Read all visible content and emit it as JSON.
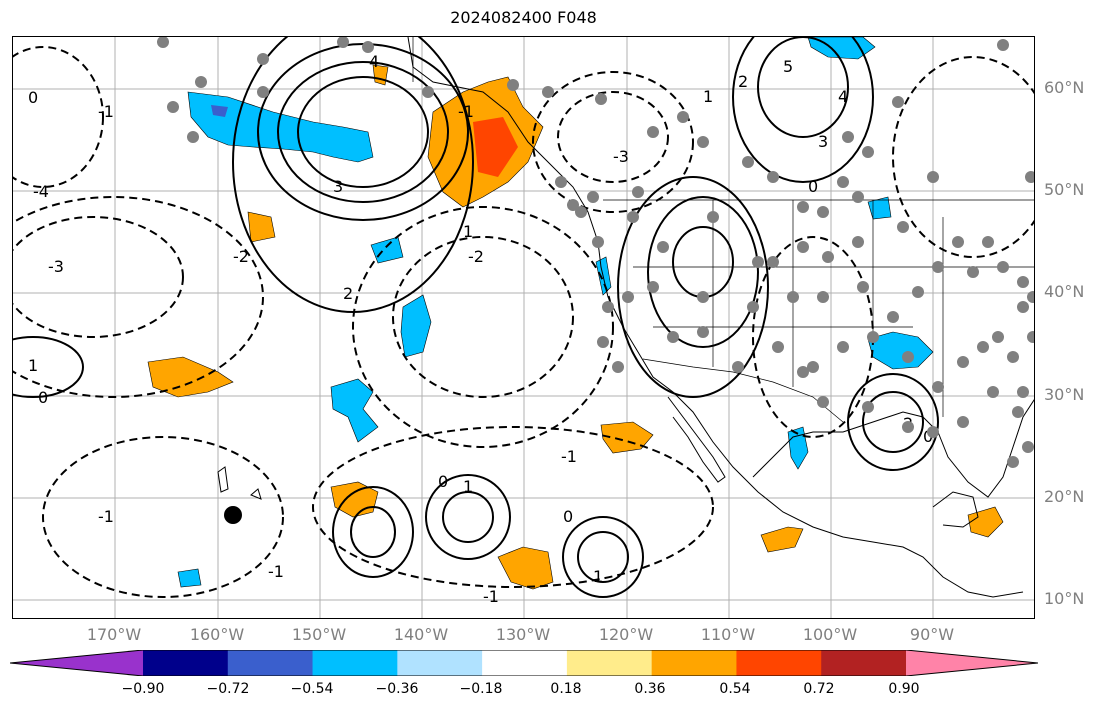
{
  "title": "2024082400 F048",
  "lon_labels": [
    "170°W",
    "160°W",
    "150°W",
    "140°W",
    "130°W",
    "120°W",
    "110°W",
    "100°W",
    "90°W"
  ],
  "lat_labels": [
    "60°N",
    "50°N",
    "40°N",
    "30°N",
    "20°N",
    "10°N"
  ],
  "colorbar": {
    "ticks": [
      "−0.90",
      "−0.72",
      "−0.54",
      "−0.36",
      "−0.18",
      "0.18",
      "0.36",
      "0.54",
      "0.72",
      "0.90"
    ],
    "colors": [
      "#9932cc",
      "#00008b",
      "#3a5fcd",
      "#00bfff",
      "#b0e2ff",
      "#ffffff",
      "#ffec8b",
      "#ffa500",
      "#ff4500",
      "#b22222",
      "#ff83a8"
    ]
  },
  "contour_labels": [
    "4",
    "3",
    "2",
    "1",
    "0",
    "-1",
    "-2",
    "-3",
    "-4",
    "5",
    "4",
    "3",
    "2",
    "1",
    "0",
    "-1",
    "-2",
    "-3",
    "1",
    "0",
    "-1",
    "2",
    "0",
    "-1",
    "1",
    "0",
    "-1",
    "1",
    "0",
    "-1"
  ],
  "colors": {
    "grid": "#b0b0b0",
    "contour": "#000000",
    "station": "#808080"
  }
}
